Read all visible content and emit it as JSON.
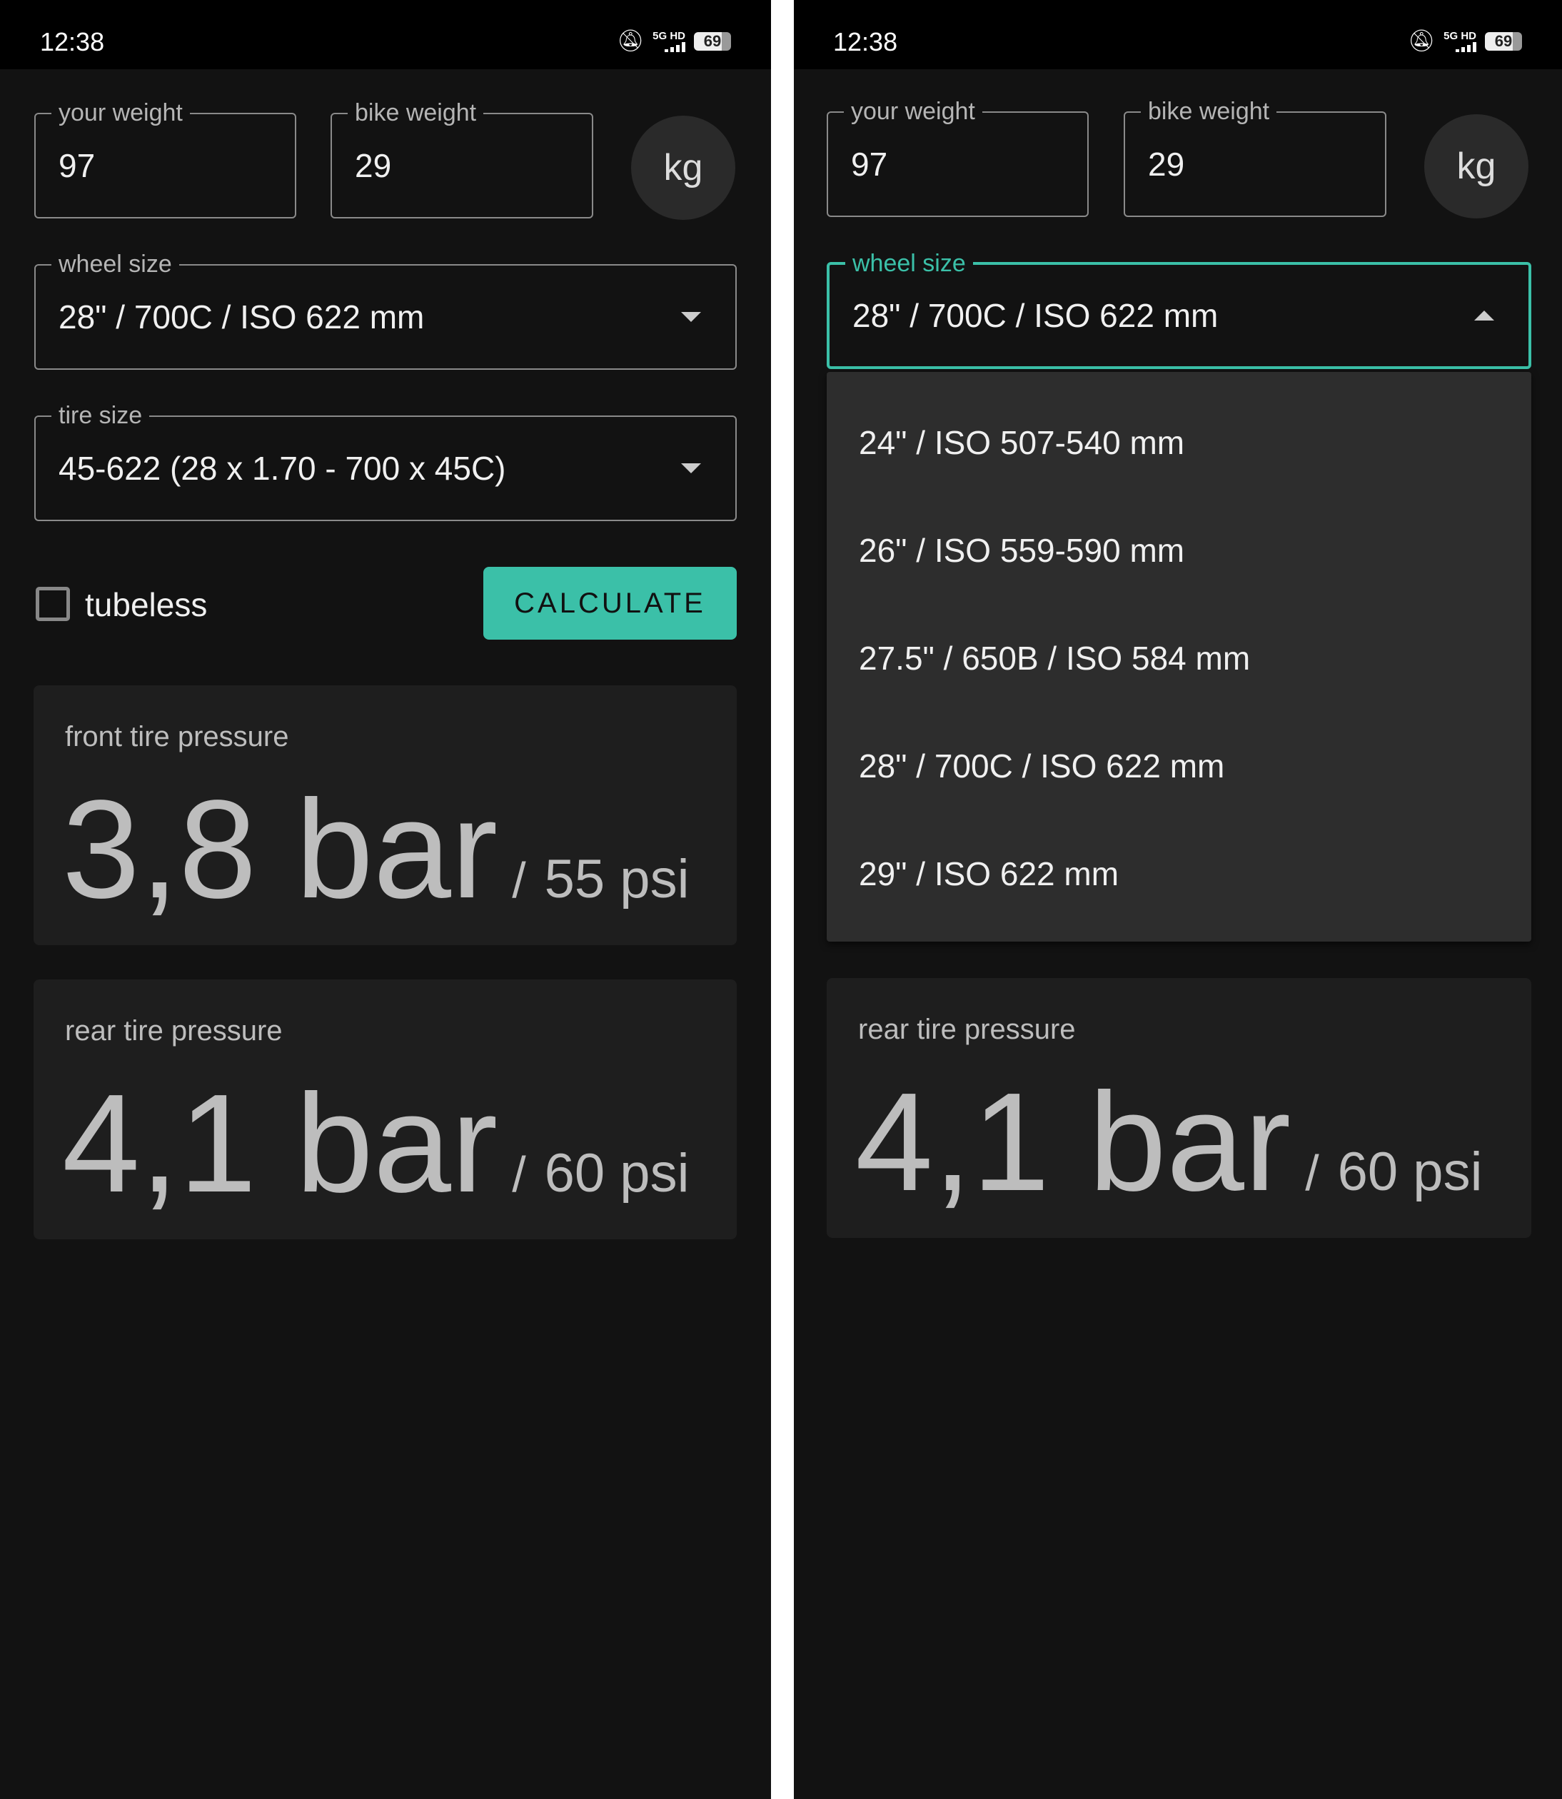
{
  "status_bar": {
    "time": "12:38",
    "network": "5G HD",
    "battery": "69"
  },
  "form": {
    "your_weight": {
      "label": "your weight",
      "value": "97"
    },
    "bike_weight": {
      "label": "bike weight",
      "value": "29"
    },
    "unit": "kg",
    "wheel_size": {
      "label": "wheel size",
      "value": "28\" / 700C / ISO 622 mm"
    },
    "tire_size": {
      "label": "tire size",
      "value": "45-622 (28 x 1.70 - 700 x 45C)"
    },
    "tubeless": {
      "label": "tubeless",
      "checked": false
    },
    "calculate": "CALCULATE"
  },
  "results": {
    "front": {
      "label": "front tire pressure",
      "bar": "3,8 bar",
      "sep": "/",
      "psi": "55 psi"
    },
    "rear": {
      "label": "rear tire pressure",
      "bar": "4,1 bar",
      "sep": "/",
      "psi": "60 psi"
    }
  },
  "wheel_dropdown": {
    "options": [
      "24\" / ISO 507-540 mm",
      "26\" / ISO 559-590 mm",
      "27.5\" / 650B / ISO 584 mm",
      "28\" / 700C / ISO 622 mm",
      "29\" / ISO 622 mm"
    ]
  },
  "colors": {
    "accent": "#3bc0a8",
    "background": "#121212",
    "card": "#1e1e1e"
  }
}
